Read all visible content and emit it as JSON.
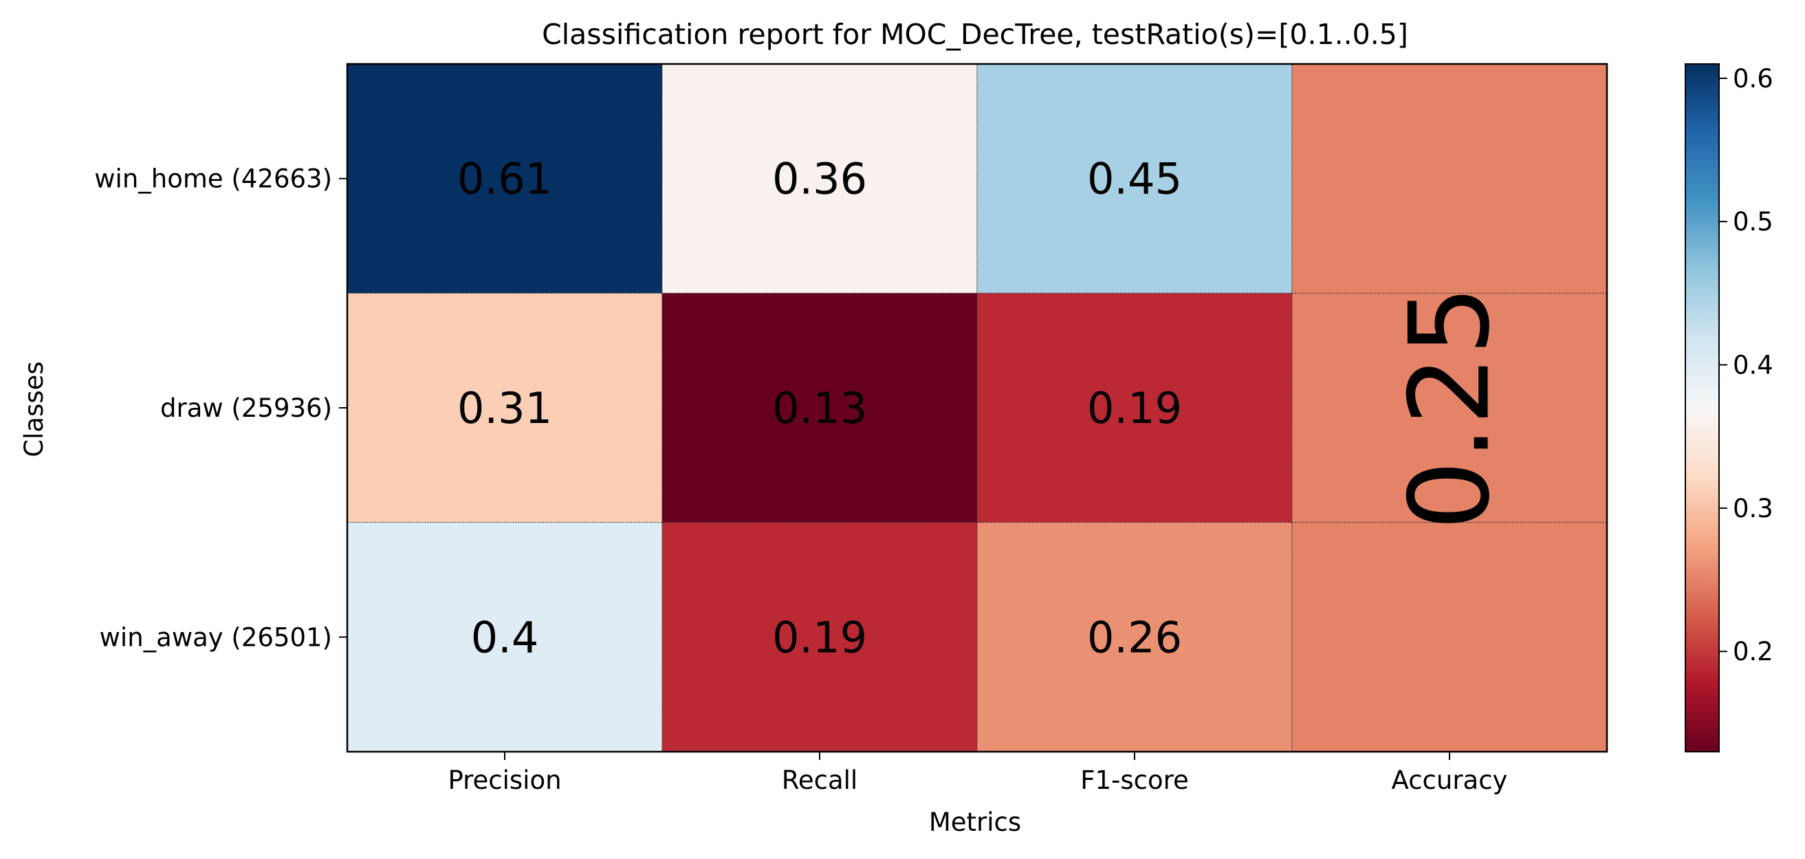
{
  "chart_data": {
    "type": "heatmap",
    "title": "Classification report for MOC_DecTree, testRatio(s)=[0.1..0.5]",
    "xlabel": "Metrics",
    "ylabel": "Classes",
    "columns": [
      "Precision",
      "Recall",
      "F1-score",
      "Accuracy"
    ],
    "rows": [
      "win_home (42663)",
      "draw (25936)",
      "win_away (26501)"
    ],
    "values": [
      [
        0.61,
        0.36,
        0.45
      ],
      [
        0.31,
        0.13,
        0.19
      ],
      [
        0.4,
        0.19,
        0.26
      ]
    ],
    "value_labels": [
      [
        "0.61",
        "0.36",
        "0.45"
      ],
      [
        "0.31",
        "0.13",
        "0.19"
      ],
      [
        "0.4",
        "0.19",
        "0.26"
      ]
    ],
    "accuracy": {
      "value": 0.25,
      "label": "0.25"
    },
    "colormap": "RdBu",
    "colorbar": {
      "range": [
        0.13,
        0.61
      ],
      "ticks": [
        0.2,
        0.3,
        0.4,
        0.5,
        0.6
      ],
      "tick_labels": [
        "0.2",
        "0.3",
        "0.4",
        "0.5",
        "0.6"
      ]
    }
  }
}
